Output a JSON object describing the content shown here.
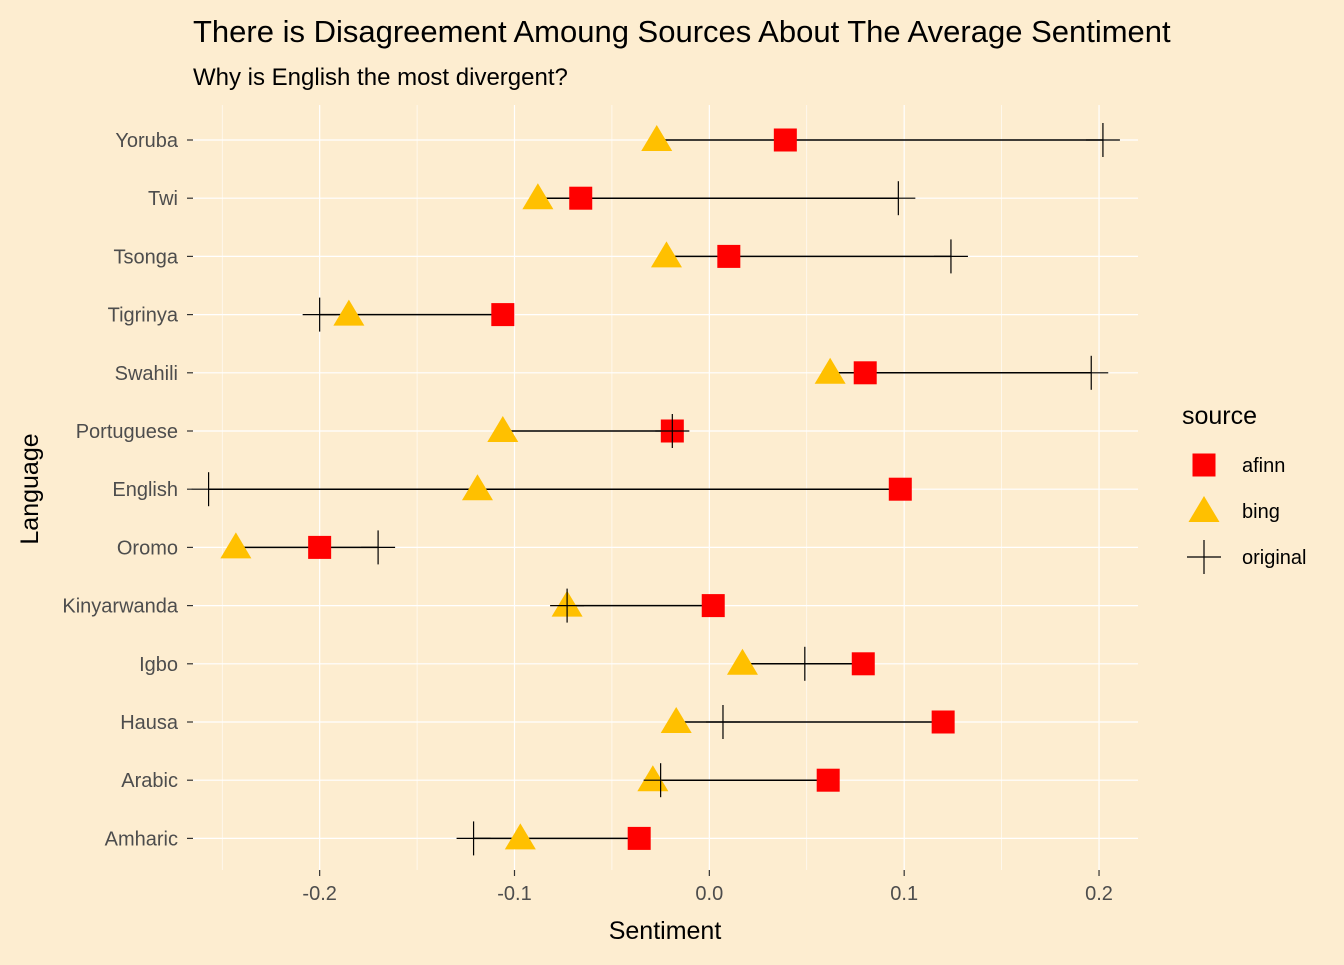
{
  "chart_data": {
    "type": "scatter",
    "title": "There is Disagreement Amoung Sources About The Average Sentiment",
    "subtitle": "Why is English the most divergent?",
    "xlabel": "Sentiment",
    "ylabel": "Language",
    "xlim": [
      -0.265,
      0.22
    ],
    "x_ticks": [
      -0.2,
      -0.1,
      0.0,
      0.1,
      0.2
    ],
    "x_tick_labels": [
      "-0.2",
      "-0.1",
      "0.0",
      "0.1",
      "0.2"
    ],
    "categories": [
      "Yoruba",
      "Twi",
      "Tsonga",
      "Tigrinya",
      "Swahili",
      "Portuguese",
      "English",
      "Oromo",
      "Kinyarwanda",
      "Igbo",
      "Hausa",
      "Arabic",
      "Amharic"
    ],
    "series": [
      {
        "name": "afinn",
        "shape": "square",
        "color": "#FF0000",
        "values": [
          0.039,
          -0.066,
          0.01,
          -0.106,
          0.08,
          -0.019,
          0.098,
          -0.2,
          0.002,
          0.079,
          0.12,
          0.061,
          -0.036
        ]
      },
      {
        "name": "bing",
        "shape": "triangle",
        "color": "#FFC000",
        "values": [
          -0.027,
          -0.088,
          -0.022,
          -0.185,
          0.062,
          -0.106,
          -0.119,
          -0.243,
          -0.073,
          0.017,
          -0.017,
          -0.029,
          -0.097
        ]
      },
      {
        "name": "original",
        "shape": "cross",
        "color": "#000000",
        "values": [
          0.202,
          0.097,
          0.124,
          -0.2,
          0.196,
          -0.019,
          -0.257,
          -0.17,
          -0.073,
          0.049,
          0.007,
          -0.025,
          -0.121
        ]
      }
    ],
    "grid": true,
    "legend": {
      "title": "source",
      "position": "right"
    }
  },
  "colors": {
    "background": "#FDEDD0",
    "grid": "#FFFFFF",
    "segment": "#000000"
  }
}
